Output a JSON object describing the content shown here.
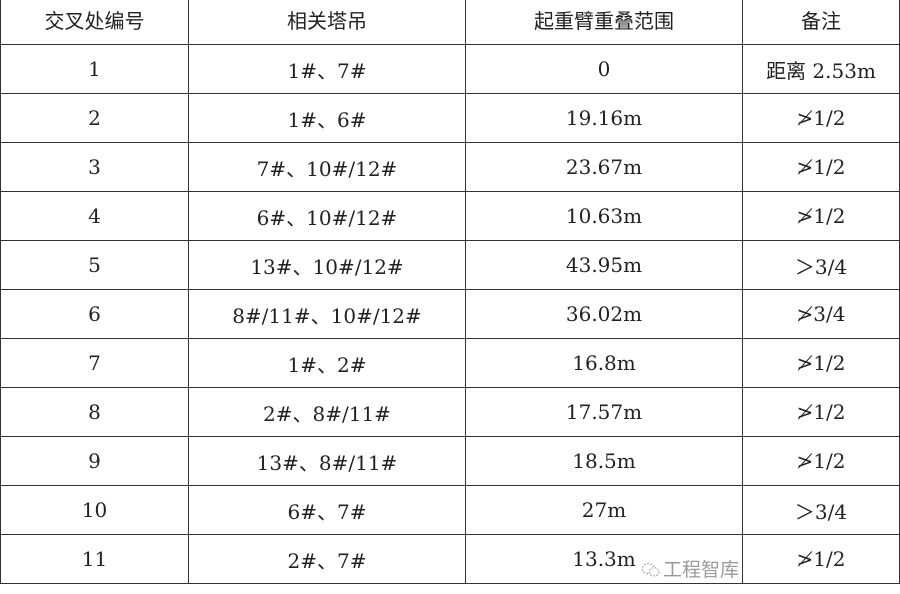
{
  "headers": [
    "交叉处编号",
    "相关塔吊",
    "起重臂重叠范围",
    "备注"
  ],
  "rows": [
    [
      "1",
      "1#、7#",
      "0",
      "距离 2.53m"
    ],
    [
      "2",
      "1#、6#",
      "19.16m",
      "≯1/2"
    ],
    [
      "3",
      "7#、10#/12#",
      "23.67m",
      "≯1/2"
    ],
    [
      "4",
      "6#、10#/12#",
      "10.63m",
      "≯1/2"
    ],
    [
      "5",
      "13#、10#/12#",
      "43.95m",
      "＞3/4"
    ],
    [
      "6",
      "8#/11#、10#/12#",
      "36.02m",
      "≯3/4"
    ],
    [
      "7",
      "1#、2#",
      "16.8m",
      "≯1/2"
    ],
    [
      "8",
      "2#、8#/11#",
      "17.57m",
      "≯1/2"
    ],
    [
      "9",
      "13#、8#/11#",
      "18.5m",
      "≯1/2"
    ],
    [
      "10",
      "6#、7#",
      "27m",
      "＞3/4"
    ],
    [
      "11",
      "2#、7#",
      "13.3m",
      "≯1/2"
    ]
  ],
  "watermark": {
    "text": "工程智库",
    "icon": "wechat-icon"
  }
}
